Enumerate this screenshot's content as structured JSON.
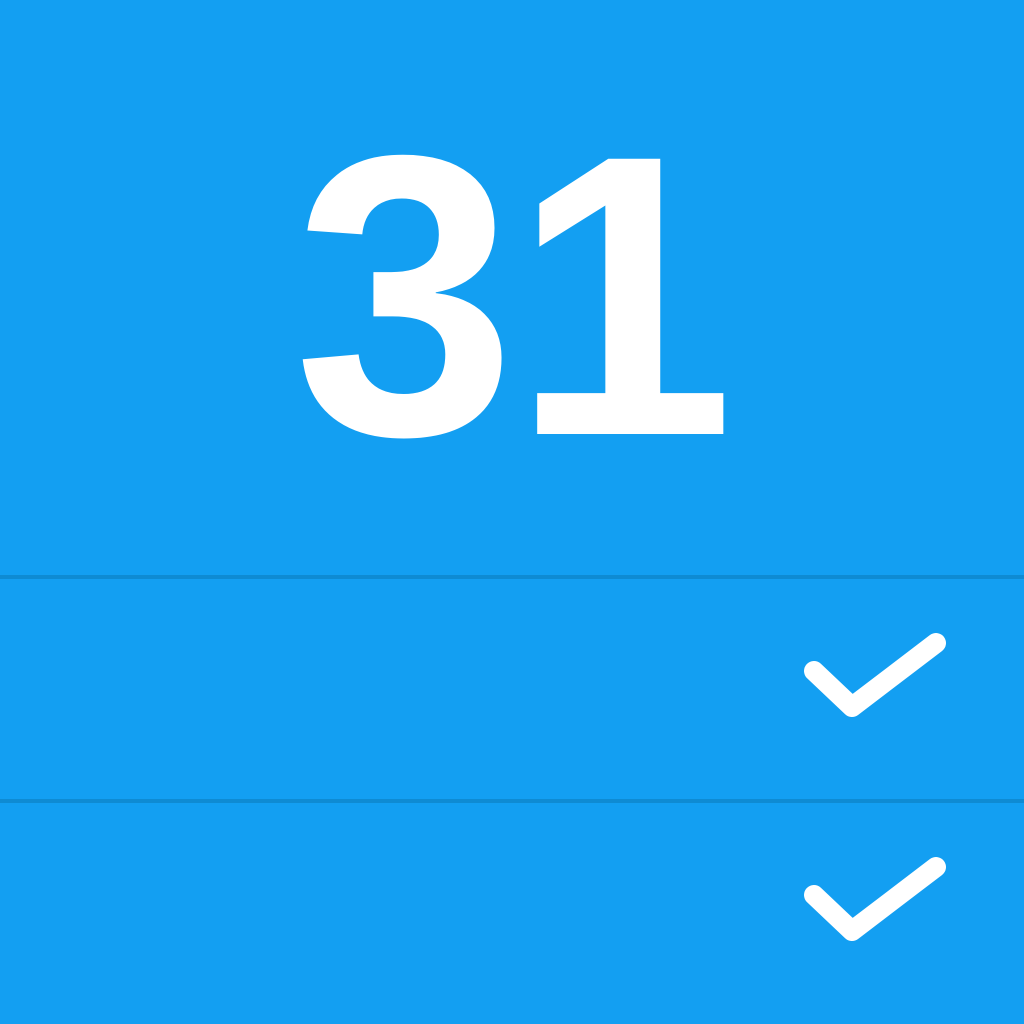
{
  "header": {
    "day_number": "31"
  },
  "rows": [
    {
      "icon": "checkmark-icon",
      "checked": true
    },
    {
      "icon": "checkmark-icon",
      "checked": true
    }
  ],
  "colors": {
    "background": "#139ff2",
    "divider": "#0e8bd3",
    "foreground": "#ffffff"
  }
}
